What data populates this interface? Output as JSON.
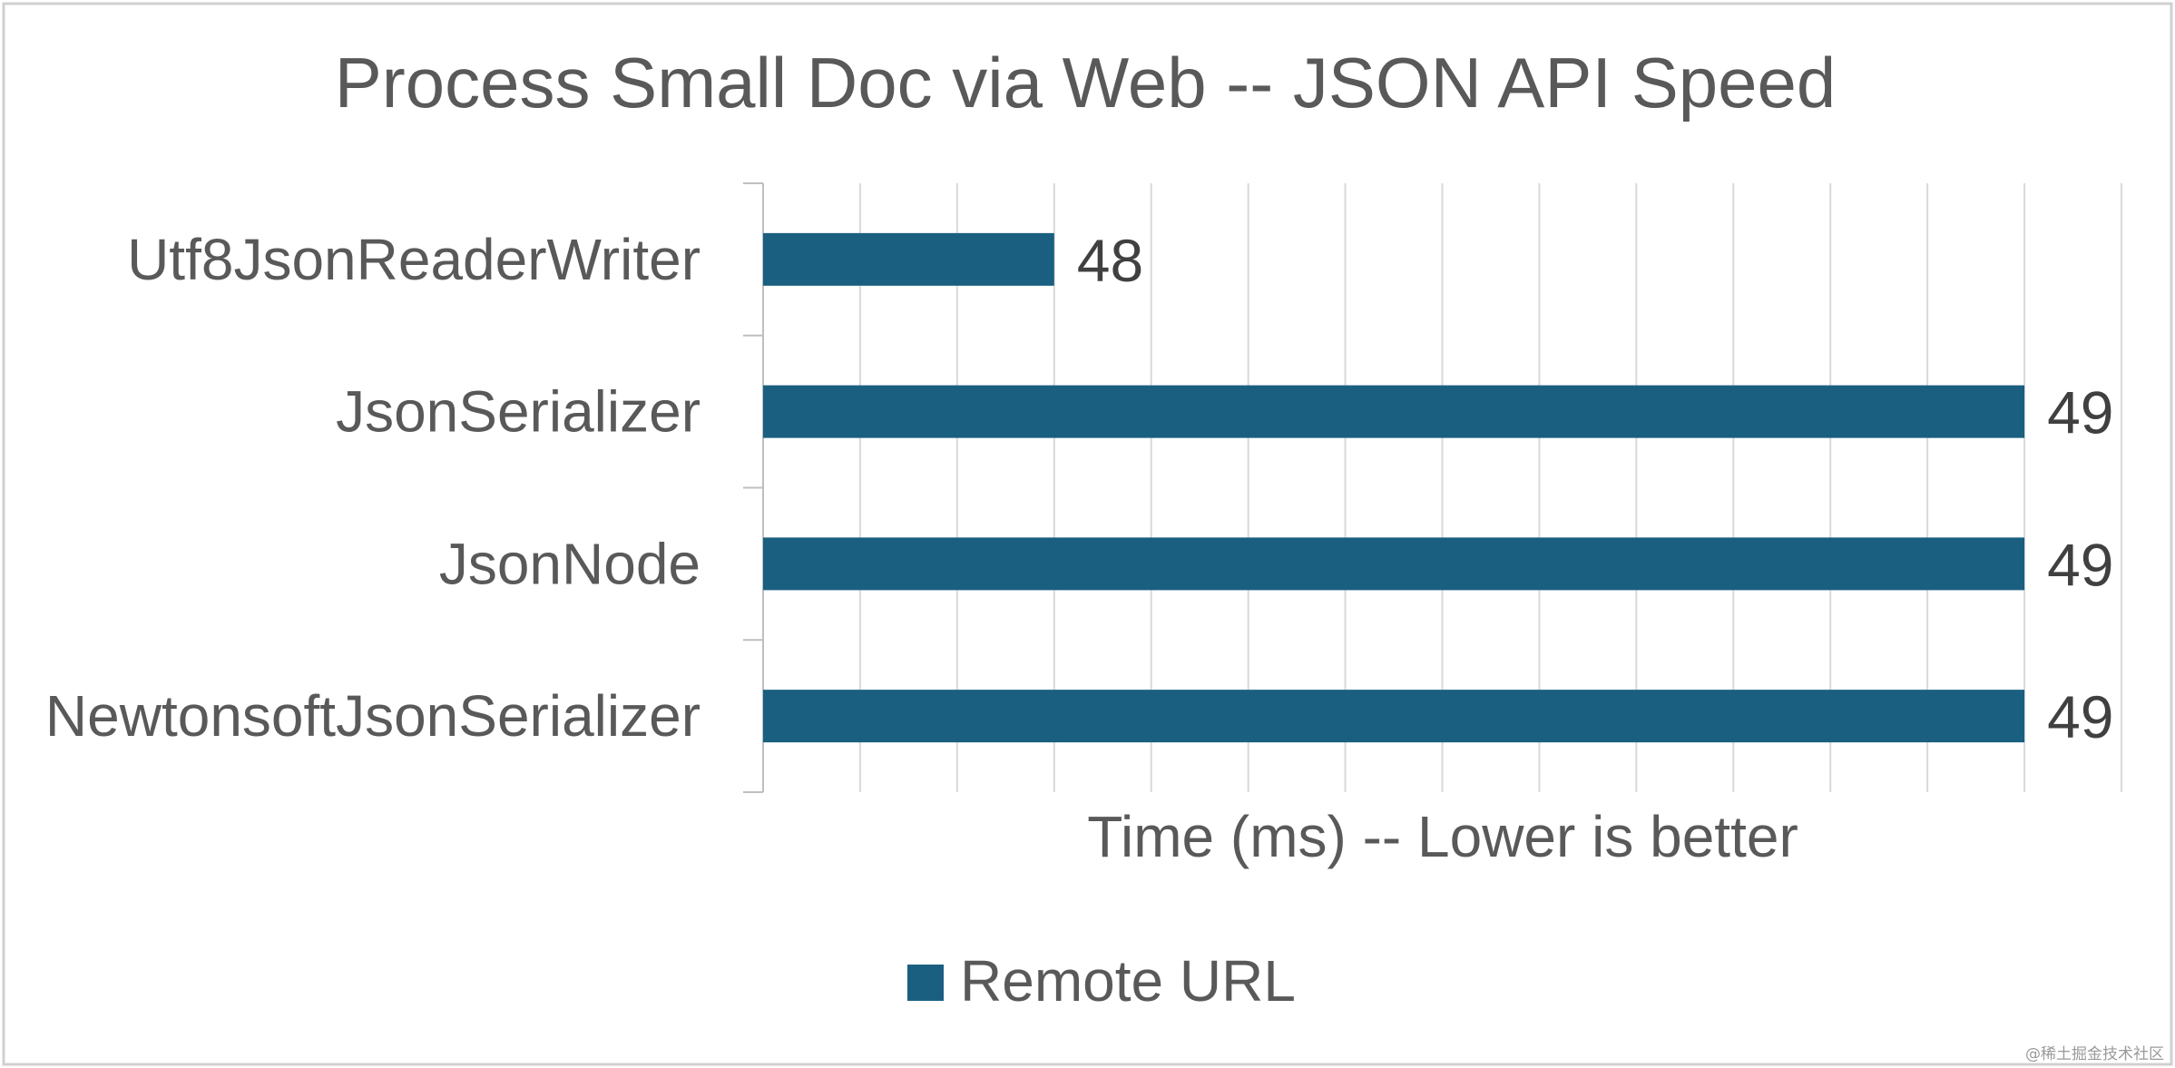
{
  "chart_data": {
    "type": "bar",
    "orientation": "horizontal",
    "title": "Process Small Doc via Web -- JSON API Speed",
    "xlabel": "Time (ms) -- Lower is better",
    "ylabel": "",
    "categories": [
      "Utf8JsonReaderWriter",
      "JsonSerializer",
      "JsonNode",
      "NewtonsoftJsonSerializer"
    ],
    "series": [
      {
        "name": "Remote URL",
        "values": [
          48,
          49,
          49,
          49
        ],
        "color": "#1a5f80"
      }
    ],
    "xlim": [
      47.7,
      49.1
    ],
    "grid_step": 0.1,
    "grid": true,
    "tick_labels_shown": false,
    "legend": "bottom"
  },
  "colors": {
    "bar": "#1a5f80",
    "grid": "#d9d9d9",
    "axis": "#bfbfbf",
    "frame": "#d0d0d0"
  },
  "watermark": "@稀土掘金技术社区"
}
